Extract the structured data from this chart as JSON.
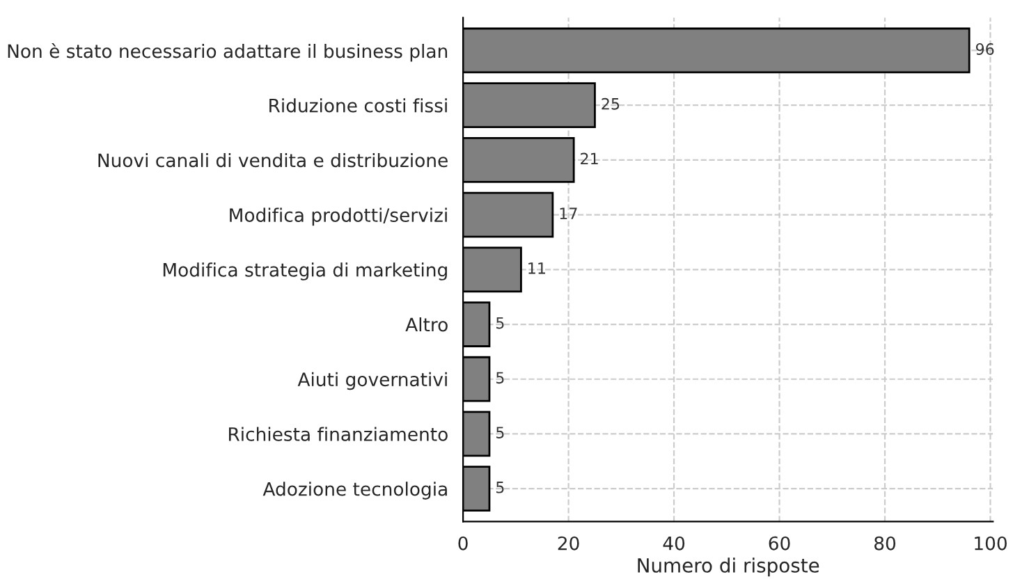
{
  "chart_data": {
    "type": "bar",
    "orientation": "horizontal",
    "xlabel": "Numero di risposte",
    "categories": [
      "Non è stato necessario adattare il business plan",
      "Riduzione costi fissi",
      "Nuovi canali di vendita e distribuzione",
      "Modifica prodotti/servizi",
      "Modifica strategia di marketing",
      "Altro",
      "Aiuti governativi",
      "Richiesta finanziamento",
      "Adozione tecnologia"
    ],
    "values": [
      96,
      25,
      21,
      17,
      11,
      5,
      5,
      5,
      5
    ],
    "color": "#808080",
    "xlim": [
      0,
      100.5
    ],
    "xticks": [
      0,
      20,
      40,
      60,
      80,
      100
    ],
    "grid": true,
    "data_labels": true
  }
}
